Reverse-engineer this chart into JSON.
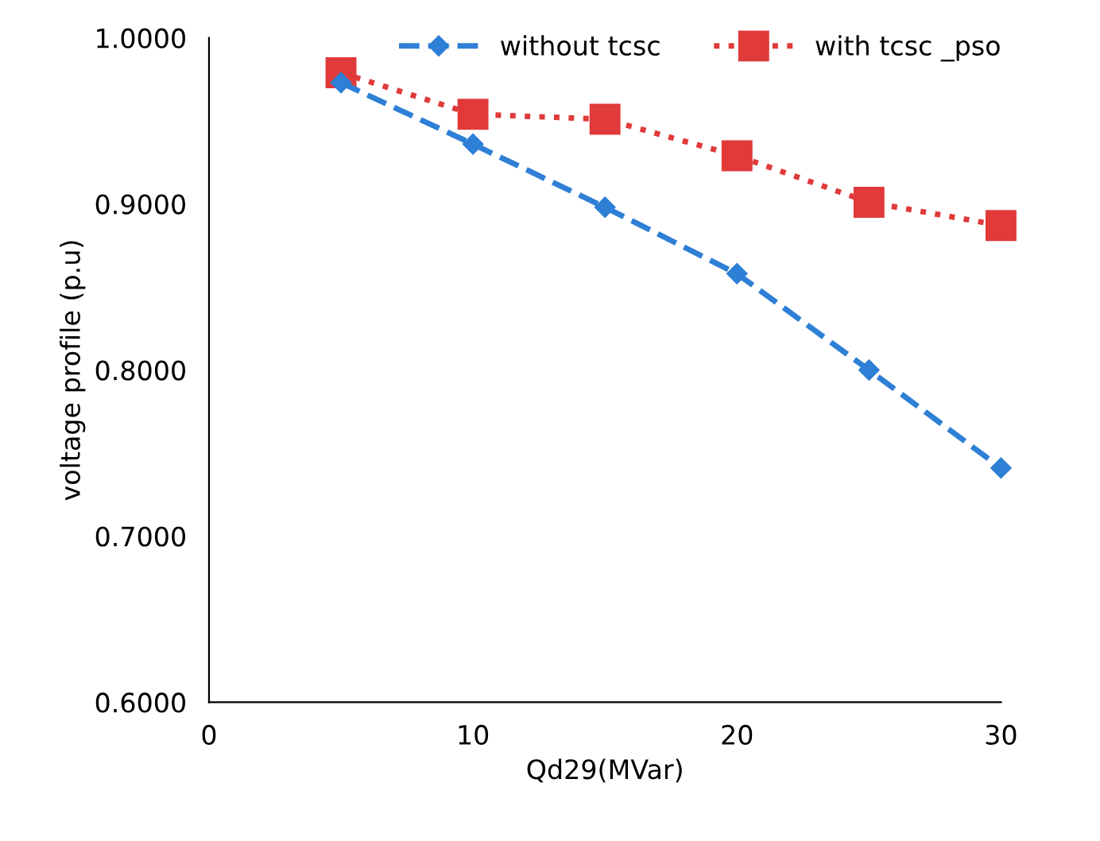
{
  "chart_data": {
    "type": "line",
    "xlabel": "Qd29(MVar)",
    "ylabel": "voltage profile (p.u)",
    "x": [
      5,
      10,
      15,
      20,
      25,
      30
    ],
    "series": [
      {
        "name": "without tcsc",
        "color": "#2e7fd6",
        "values": [
          0.973,
          0.936,
          0.898,
          0.858,
          0.8,
          0.741
        ],
        "marker": "diamond",
        "line_style": "dashed"
      },
      {
        "name": "with tcsc _pso",
        "color": "#e03a3a",
        "values": [
          0.979,
          0.954,
          0.951,
          0.929,
          0.901,
          0.887
        ],
        "marker": "square",
        "line_style": "dotted"
      }
    ],
    "xlim": [
      0,
      30
    ],
    "xticks": [
      0,
      10,
      20,
      30
    ],
    "ylim": [
      0.6,
      1.0
    ],
    "yticks": [
      {
        "value": 0.6,
        "label": "0.6000"
      },
      {
        "value": 0.7,
        "label": "0.7000"
      },
      {
        "value": 0.8,
        "label": "0.8000"
      },
      {
        "value": 0.9,
        "label": "0.9000"
      },
      {
        "value": 1.0,
        "label": "1.0000"
      }
    ],
    "grid": false,
    "legend": "top"
  }
}
